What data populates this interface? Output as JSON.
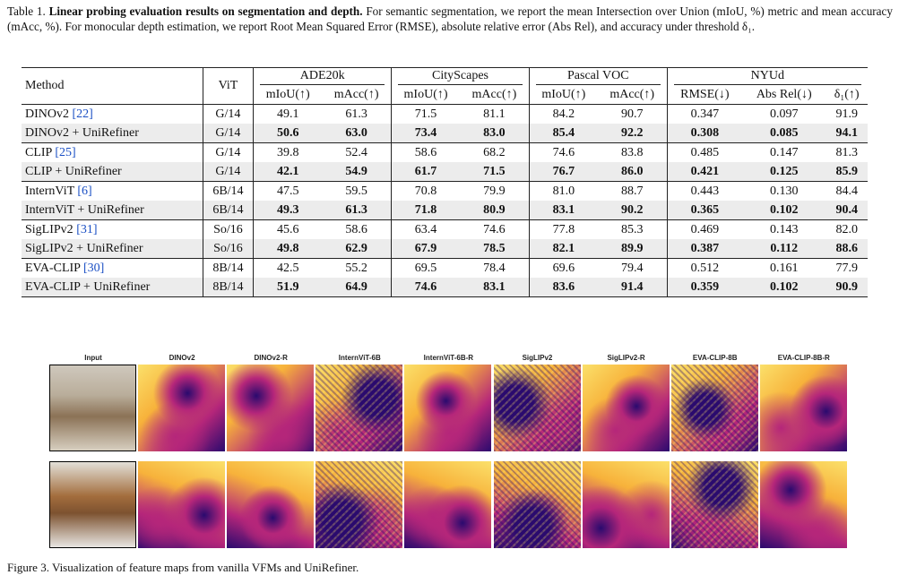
{
  "caption": {
    "label": "Table 1.",
    "bold": "Linear probing evaluation results on segmentation and depth.",
    "text": "For semantic segmentation, we report the mean Intersection over Union (mIoU, %) metric and mean accuracy (mAcc, %). For monocular depth estimation, we report Root Mean Squared Error (RMSE), absolute relative error (Abs Rel), and accuracy under threshold δ₁."
  },
  "table": {
    "col_method": "Method",
    "col_vit": "ViT",
    "groups": [
      "ADE20k",
      "CityScapes",
      "Pascal VOC",
      "NYUd"
    ],
    "subcols": [
      "mIoU(↑)",
      "mAcc(↑)",
      "mIoU(↑)",
      "mAcc(↑)",
      "mIoU(↑)",
      "mAcc(↑)",
      "RMSE(↓)",
      "Abs Rel(↓)",
      "δ₁(↑)"
    ],
    "rows": [
      {
        "method": "DINOv2",
        "cite": "[22]",
        "vit": "G/14",
        "vals": [
          "49.1",
          "61.3",
          "71.5",
          "81.1",
          "84.2",
          "90.7",
          "0.347",
          "0.097",
          "91.9"
        ],
        "bold": false
      },
      {
        "method": "DINOv2 + UniRefiner",
        "cite": "",
        "vit": "G/14",
        "vals": [
          "50.6",
          "63.0",
          "73.4",
          "83.0",
          "85.4",
          "92.2",
          "0.308",
          "0.085",
          "94.1"
        ],
        "bold": true
      },
      {
        "method": "CLIP",
        "cite": "[25]",
        "vit": "G/14",
        "vals": [
          "39.8",
          "52.4",
          "58.6",
          "68.2",
          "74.6",
          "83.8",
          "0.485",
          "0.147",
          "81.3"
        ],
        "bold": false
      },
      {
        "method": "CLIP + UniRefiner",
        "cite": "",
        "vit": "G/14",
        "vals": [
          "42.1",
          "54.9",
          "61.7",
          "71.5",
          "76.7",
          "86.0",
          "0.421",
          "0.125",
          "85.9"
        ],
        "bold": true
      },
      {
        "method": "InternViT",
        "cite": "[6]",
        "vit": "6B/14",
        "vals": [
          "47.5",
          "59.5",
          "70.8",
          "79.9",
          "81.0",
          "88.7",
          "0.443",
          "0.130",
          "84.4"
        ],
        "bold": false
      },
      {
        "method": "InternViT + UniRefiner",
        "cite": "",
        "vit": "6B/14",
        "vals": [
          "49.3",
          "61.3",
          "71.8",
          "80.9",
          "83.1",
          "90.2",
          "0.365",
          "0.102",
          "90.4"
        ],
        "bold": true
      },
      {
        "method": "SigLIPv2",
        "cite": "[31]",
        "vit": "So/16",
        "vals": [
          "45.6",
          "58.6",
          "63.4",
          "74.6",
          "77.8",
          "85.3",
          "0.469",
          "0.143",
          "82.0"
        ],
        "bold": false
      },
      {
        "method": "SigLIPv2 + UniRefiner",
        "cite": "",
        "vit": "So/16",
        "vals": [
          "49.8",
          "62.9",
          "67.9",
          "78.5",
          "82.1",
          "89.9",
          "0.387",
          "0.112",
          "88.6"
        ],
        "bold": true
      },
      {
        "method": "EVA-CLIP",
        "cite": "[30]",
        "vit": "8B/14",
        "vals": [
          "42.5",
          "55.2",
          "69.5",
          "78.4",
          "69.6",
          "79.4",
          "0.512",
          "0.161",
          "77.9"
        ],
        "bold": false
      },
      {
        "method": "EVA-CLIP + UniRefiner",
        "cite": "",
        "vit": "8B/14",
        "vals": [
          "51.9",
          "64.9",
          "74.6",
          "83.1",
          "83.6",
          "91.4",
          "0.359",
          "0.102",
          "90.9"
        ],
        "bold": true
      }
    ]
  },
  "figure": {
    "labels": [
      "Input",
      "DINOv2",
      "DINOv2-R",
      "InternViT-6B",
      "InternViT-6B-R",
      "SigLIPv2",
      "SigLIPv2-R",
      "EVA-CLIP-8B",
      "EVA-CLIP-8B-R"
    ],
    "colors": {
      "dark": "#2a0a6e",
      "mid": "#b5267a",
      "light": "#f7b23b",
      "yellow": "#fbe06a"
    }
  },
  "bottom_caption": "Figure 3. Visualization of feature maps from vanilla VFMs and UniRefiner."
}
